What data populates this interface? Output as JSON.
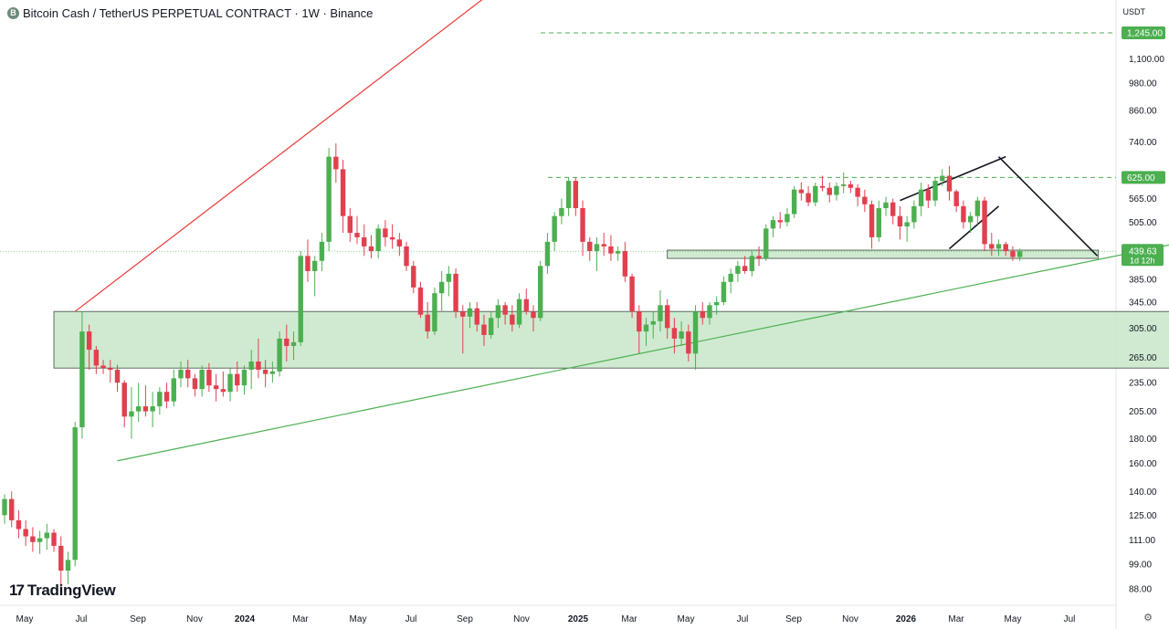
{
  "header": {
    "coin_glyph": "B",
    "title": "Bitcoin Cash / TetherUS PERPETUAL CONTRACT · 1W · Binance"
  },
  "price_unit": "USDT",
  "branding": {
    "mark": "17",
    "name": "TradingView"
  },
  "chart_data": {
    "type": "candlestick",
    "title": "Bitcoin Cash / TetherUS PERPETUAL CONTRACT · 1W · Binance",
    "y_scale": "log",
    "y_ticks": [
      88,
      99,
      111,
      125,
      140,
      160,
      180,
      205,
      235,
      265,
      305,
      345,
      385,
      505,
      565,
      740,
      860,
      980,
      1100
    ],
    "y_tick_labels": [
      "88.00",
      "99.00",
      "111.00",
      "125.00",
      "140.00",
      "160.00",
      "180.00",
      "205.00",
      "235.00",
      "265.00",
      "305.00",
      "345.00",
      "385.00",
      "505.00",
      "565.00",
      "740.00",
      "860.00",
      "980.00",
      "1,100.00"
    ],
    "x_ticks": [
      "May",
      "Jul",
      "Sep",
      "Nov",
      "2024",
      "Mar",
      "May",
      "Jul",
      "Sep",
      "Nov",
      "2025",
      "Mar",
      "May",
      "Jul",
      "Sep",
      "Nov",
      "2026",
      "Mar",
      "May",
      "Jul"
    ],
    "x_tick_bold": [
      false,
      false,
      false,
      false,
      true,
      false,
      false,
      false,
      false,
      false,
      true,
      false,
      false,
      false,
      false,
      false,
      true,
      false,
      false,
      false
    ],
    "price_labels": [
      {
        "value": 1245,
        "text": "1,245.00",
        "color": "#4caf50",
        "line": "dashed"
      },
      {
        "value": 625,
        "text": "625.00",
        "color": "#4caf50",
        "line": "dashed"
      },
      {
        "value": 439.63,
        "text": "439.63",
        "countdown": "1d 12h",
        "color": "#4caf50",
        "line": "dotted"
      }
    ],
    "zones": [
      {
        "name": "support-zone",
        "x_start": "2023-06-12",
        "x_end": "2026-07-20",
        "low": 252,
        "high": 330,
        "fill": "#c8e6c9"
      },
      {
        "name": "retest-zone",
        "x_start": "2025-02-10",
        "x_end": "2026-04-14",
        "low": 425,
        "high": 442,
        "fill": "#c8e6c9"
      }
    ],
    "trendlines": [
      {
        "name": "red-resistance-trendline",
        "color": "#e53935",
        "points": [
          [
            "2023-07-03",
            330
          ],
          [
            "2023-11-01",
            520
          ],
          [
            "2024-04-01",
            735
          ]
        ],
        "extend_to": [
          "2024-11-04",
          2000
        ]
      },
      {
        "name": "green-support-trendline",
        "color": "#4caf50",
        "points": [
          [
            "2023-08-14",
            162
          ],
          [
            "2026-07-13",
            462
          ]
        ]
      },
      {
        "name": "wedge-lower-line",
        "color": "#131722",
        "points": [
          [
            "2025-11-17",
            445
          ],
          [
            "2026-01-05",
            545
          ]
        ]
      },
      {
        "name": "wedge-upper-line",
        "color": "#131722",
        "points": [
          [
            "2025-09-29",
            560
          ],
          [
            "2026-01-12",
            690
          ]
        ]
      },
      {
        "name": "breakdown-line-left",
        "color": "#131722",
        "points": [
          [
            "2026-01-05",
            690
          ],
          [
            "2026-04-13",
            430
          ]
        ]
      }
    ],
    "candle_colors": {
      "up": "#4caf50",
      "down": "#e0404f"
    },
    "candles": [
      [
        125,
        138,
        120,
        135
      ],
      [
        135,
        140,
        118,
        122
      ],
      [
        122,
        128,
        112,
        117
      ],
      [
        117,
        122,
        108,
        113
      ],
      [
        113,
        118,
        105,
        110
      ],
      [
        110,
        116,
        104,
        112
      ],
      [
        112,
        120,
        106,
        115
      ],
      [
        115,
        117,
        105,
        108
      ],
      [
        108,
        113,
        88,
        96
      ],
      [
        96,
        105,
        90,
        101
      ],
      [
        101,
        195,
        98,
        190
      ],
      [
        190,
        330,
        180,
        300
      ],
      [
        300,
        310,
        250,
        275
      ],
      [
        275,
        280,
        245,
        255
      ],
      [
        255,
        262,
        245,
        252
      ],
      [
        252,
        262,
        235,
        250
      ],
      [
        250,
        256,
        225,
        235
      ],
      [
        235,
        238,
        190,
        200
      ],
      [
        200,
        230,
        180,
        205
      ],
      [
        205,
        235,
        195,
        210
      ],
      [
        210,
        232,
        200,
        205
      ],
      [
        205,
        225,
        190,
        210
      ],
      [
        210,
        230,
        202,
        225
      ],
      [
        225,
        235,
        208,
        215
      ],
      [
        215,
        250,
        210,
        240
      ],
      [
        240,
        260,
        230,
        250
      ],
      [
        250,
        262,
        230,
        240
      ],
      [
        240,
        245,
        220,
        228
      ],
      [
        228,
        255,
        220,
        250
      ],
      [
        250,
        258,
        225,
        232
      ],
      [
        232,
        245,
        215,
        228
      ],
      [
        228,
        248,
        220,
        225
      ],
      [
        225,
        252,
        215,
        245
      ],
      [
        245,
        260,
        225,
        232
      ],
      [
        232,
        255,
        222,
        250
      ],
      [
        250,
        275,
        228,
        260
      ],
      [
        260,
        290,
        240,
        250
      ],
      [
        250,
        262,
        230,
        245
      ],
      [
        245,
        260,
        235,
        248
      ],
      [
        248,
        300,
        242,
        290
      ],
      [
        290,
        310,
        260,
        280
      ],
      [
        280,
        300,
        262,
        285
      ],
      [
        285,
        440,
        280,
        430
      ],
      [
        430,
        465,
        380,
        400
      ],
      [
        400,
        430,
        355,
        420
      ],
      [
        420,
        480,
        400,
        460
      ],
      [
        460,
        720,
        440,
        690
      ],
      [
        690,
        735,
        610,
        650
      ],
      [
        650,
        680,
        480,
        520
      ],
      [
        520,
        540,
        460,
        480
      ],
      [
        480,
        520,
        455,
        470
      ],
      [
        470,
        500,
        430,
        450
      ],
      [
        450,
        475,
        425,
        440
      ],
      [
        440,
        500,
        425,
        490
      ],
      [
        490,
        510,
        450,
        470
      ],
      [
        470,
        500,
        445,
        465
      ],
      [
        465,
        480,
        430,
        450
      ],
      [
        450,
        460,
        400,
        410
      ],
      [
        410,
        420,
        360,
        370
      ],
      [
        370,
        380,
        320,
        325
      ],
      [
        325,
        345,
        290,
        300
      ],
      [
        300,
        370,
        295,
        360
      ],
      [
        360,
        400,
        330,
        380
      ],
      [
        380,
        410,
        355,
        395
      ],
      [
        395,
        405,
        320,
        330
      ],
      [
        330,
        340,
        270,
        322
      ],
      [
        322,
        345,
        305,
        335
      ],
      [
        335,
        345,
        300,
        310
      ],
      [
        310,
        325,
        280,
        295
      ],
      [
        295,
        330,
        290,
        320
      ],
      [
        320,
        350,
        305,
        340
      ],
      [
        340,
        345,
        310,
        325
      ],
      [
        325,
        340,
        300,
        310
      ],
      [
        310,
        360,
        305,
        350
      ],
      [
        350,
        368,
        325,
        330
      ],
      [
        330,
        340,
        300,
        320
      ],
      [
        320,
        420,
        315,
        410
      ],
      [
        410,
        480,
        395,
        460
      ],
      [
        460,
        530,
        440,
        520
      ],
      [
        520,
        565,
        500,
        540
      ],
      [
        540,
        625,
        520,
        615
      ],
      [
        615,
        625,
        520,
        540
      ],
      [
        540,
        560,
        430,
        460
      ],
      [
        460,
        470,
        420,
        440
      ],
      [
        440,
        470,
        400,
        455
      ],
      [
        455,
        480,
        430,
        450
      ],
      [
        450,
        475,
        420,
        435
      ],
      [
        435,
        450,
        420,
        440
      ],
      [
        440,
        460,
        380,
        390
      ],
      [
        390,
        395,
        320,
        330
      ],
      [
        330,
        340,
        270,
        300
      ],
      [
        300,
        320,
        280,
        310
      ],
      [
        310,
        330,
        290,
        315
      ],
      [
        315,
        365,
        300,
        340
      ],
      [
        340,
        350,
        290,
        305
      ],
      [
        305,
        320,
        270,
        290
      ],
      [
        290,
        315,
        280,
        300
      ],
      [
        300,
        310,
        260,
        270
      ],
      [
        270,
        340,
        250,
        330
      ],
      [
        330,
        345,
        310,
        320
      ],
      [
        320,
        345,
        310,
        340
      ],
      [
        340,
        355,
        325,
        345
      ],
      [
        345,
        390,
        340,
        380
      ],
      [
        380,
        405,
        360,
        395
      ],
      [
        395,
        420,
        380,
        410
      ],
      [
        410,
        430,
        395,
        400
      ],
      [
        400,
        440,
        390,
        430
      ],
      [
        430,
        450,
        410,
        425
      ],
      [
        425,
        500,
        420,
        490
      ],
      [
        490,
        520,
        470,
        510
      ],
      [
        510,
        530,
        490,
        505
      ],
      [
        505,
        540,
        495,
        525
      ],
      [
        525,
        600,
        515,
        590
      ],
      [
        590,
        610,
        560,
        580
      ],
      [
        580,
        600,
        545,
        555
      ],
      [
        555,
        610,
        545,
        600
      ],
      [
        600,
        630,
        585,
        595
      ],
      [
        595,
        610,
        555,
        575
      ],
      [
        575,
        610,
        560,
        600
      ],
      [
        600,
        640,
        580,
        605
      ],
      [
        605,
        615,
        580,
        595
      ],
      [
        595,
        605,
        545,
        570
      ],
      [
        570,
        590,
        530,
        550
      ],
      [
        550,
        560,
        445,
        470
      ],
      [
        470,
        560,
        460,
        540
      ],
      [
        540,
        570,
        520,
        555
      ],
      [
        555,
        565,
        500,
        520
      ],
      [
        520,
        545,
        465,
        495
      ],
      [
        495,
        520,
        460,
        505
      ],
      [
        505,
        560,
        490,
        545
      ],
      [
        545,
        610,
        520,
        590
      ],
      [
        590,
        605,
        540,
        560
      ],
      [
        560,
        625,
        545,
        615
      ],
      [
        615,
        650,
        600,
        630
      ],
      [
        630,
        660,
        560,
        585
      ],
      [
        585,
        590,
        530,
        545
      ],
      [
        545,
        560,
        490,
        505
      ],
      [
        505,
        530,
        480,
        520
      ],
      [
        520,
        570,
        500,
        560
      ],
      [
        560,
        570,
        440,
        455
      ],
      [
        455,
        480,
        430,
        445
      ],
      [
        445,
        465,
        430,
        455
      ],
      [
        455,
        460,
        430,
        440
      ],
      [
        440,
        450,
        420,
        428
      ],
      [
        428,
        445,
        420,
        439.63
      ]
    ],
    "candle_x_start": "2023-04-24",
    "candle_interval": "1W"
  }
}
